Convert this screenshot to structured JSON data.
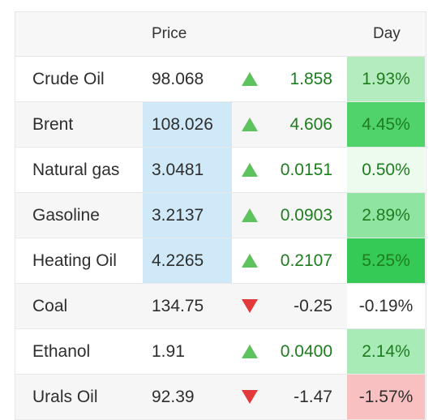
{
  "header": {
    "price_label": "Price",
    "day_label": "Day"
  },
  "rows": [
    {
      "name": "Crude Oil",
      "price": "98.068",
      "direction": "up",
      "change": "1.858",
      "pct": "1.93%",
      "price_highlight": false,
      "pct_color": "#b4ecc0"
    },
    {
      "name": "Brent",
      "price": "108.026",
      "direction": "up",
      "change": "4.606",
      "pct": "4.45%",
      "price_highlight": true,
      "pct_color": "#4fd36a"
    },
    {
      "name": "Natural gas",
      "price": "3.0481",
      "direction": "up",
      "change": "0.0151",
      "pct": "0.50%",
      "price_highlight": true,
      "pct_color": "#ecfbee"
    },
    {
      "name": "Gasoline",
      "price": "3.2137",
      "direction": "up",
      "change": "0.0903",
      "pct": "2.89%",
      "price_highlight": true,
      "pct_color": "#8fe4a2"
    },
    {
      "name": "Heating Oil",
      "price": "4.2265",
      "direction": "up",
      "change": "0.2107",
      "pct": "5.25%",
      "price_highlight": true,
      "pct_color": "#35c956"
    },
    {
      "name": "Coal",
      "price": "134.75",
      "direction": "down",
      "change": "-0.25",
      "pct": "-0.19%",
      "price_highlight": false,
      "pct_color": "#ffffff"
    },
    {
      "name": "Ethanol",
      "price": "1.91",
      "direction": "up",
      "change": "0.0400",
      "pct": "2.14%",
      "price_highlight": false,
      "pct_color": "#a8ebb7"
    },
    {
      "name": "Urals Oil",
      "price": "92.39",
      "direction": "down",
      "change": "-1.47",
      "pct": "-1.57%",
      "price_highlight": false,
      "pct_color": "#f8c0c0"
    }
  ],
  "colors": {
    "price_highlight": "#cfe9f8",
    "up_arrow": "#5ec25e",
    "down_arrow": "#e23a3a",
    "up_text": "#1e7d1e"
  },
  "icons": {
    "up": "triangle-up-icon",
    "down": "triangle-down-icon"
  }
}
